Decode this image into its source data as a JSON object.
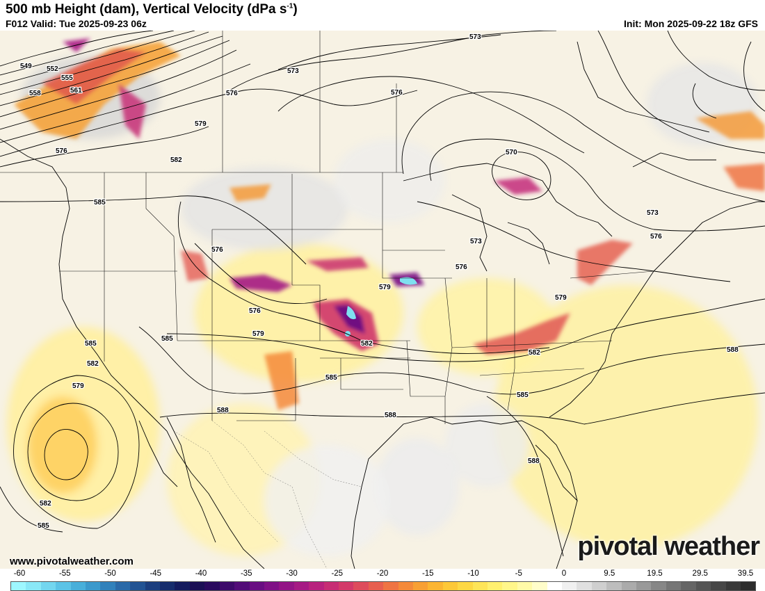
{
  "header": {
    "title_main": "500 mb Height (dam), Vertical Velocity (dPa s",
    "title_sup": "-1",
    "title_end": ")",
    "valid": "F012 Valid: Tue 2025-09-23 06z",
    "init": "Init: Mon 2025-09-22 18z GFS"
  },
  "branding": {
    "website": "www.pivotalweather.com",
    "logo": "pivotal weather"
  },
  "contour_labels": [
    {
      "text": "549",
      "id": "label-549"
    },
    {
      "text": "552",
      "id": "label-552"
    },
    {
      "text": "555",
      "id": "label-555"
    },
    {
      "text": "558",
      "id": "label-558"
    },
    {
      "text": "561",
      "id": "label-561"
    },
    {
      "text": "576",
      "id": "label-576-nw"
    },
    {
      "text": "576",
      "id": "label-576-bc"
    },
    {
      "text": "579",
      "id": "label-579-nw"
    },
    {
      "text": "582",
      "id": "label-582-nw"
    },
    {
      "text": "573",
      "id": "label-573-n1"
    },
    {
      "text": "573",
      "id": "label-573-n2"
    },
    {
      "text": "576",
      "id": "label-576-n"
    },
    {
      "text": "570",
      "id": "label-570"
    },
    {
      "text": "573",
      "id": "label-573-glakes"
    },
    {
      "text": "573",
      "id": "label-573-ne"
    },
    {
      "text": "576",
      "id": "label-576-ne"
    },
    {
      "text": "576",
      "id": "label-576-mw"
    },
    {
      "text": "579",
      "id": "label-579-ia"
    },
    {
      "text": "579",
      "id": "label-579-va"
    },
    {
      "text": "582",
      "id": "label-582-tn"
    },
    {
      "text": "588",
      "id": "label-588-atl"
    },
    {
      "text": "585",
      "id": "label-585-w"
    },
    {
      "text": "576",
      "id": "label-576-wy"
    },
    {
      "text": "576",
      "id": "label-576-co"
    },
    {
      "text": "579",
      "id": "label-579-co"
    },
    {
      "text": "582",
      "id": "label-582-ks"
    },
    {
      "text": "585",
      "id": "label-585-ok"
    },
    {
      "text": "585",
      "id": "label-585-ca"
    },
    {
      "text": "585",
      "id": "label-585-nv"
    },
    {
      "text": "582",
      "id": "label-582-pac"
    },
    {
      "text": "579",
      "id": "label-579-pac"
    },
    {
      "text": "582",
      "id": "label-582-pac2"
    },
    {
      "text": "585",
      "id": "label-585-pac2"
    },
    {
      "text": "588",
      "id": "label-588-az"
    },
    {
      "text": "588",
      "id": "label-588-tx"
    },
    {
      "text": "585",
      "id": "label-585-ga"
    },
    {
      "text": "588",
      "id": "label-588-fl"
    }
  ],
  "legend": {
    "ticks": [
      "-60",
      "-55",
      "-50",
      "-45",
      "-40",
      "-35",
      "-30",
      "-25",
      "-20",
      "-15",
      "-10",
      "-5",
      "0",
      "9.5",
      "19.5",
      "29.5",
      "39.5"
    ],
    "colors": [
      "#9ef7ff",
      "#8ae8f7",
      "#73d6ef",
      "#5cc3e6",
      "#48afda",
      "#3b99cc",
      "#3181bb",
      "#2a69a8",
      "#225393",
      "#1b3e7e",
      "#162c6c",
      "#141b5e",
      "#1b0f55",
      "#2a0a5e",
      "#3d0a6a",
      "#520c78",
      "#690e82",
      "#7f1186",
      "#931486",
      "#a61a84",
      "#b8227e",
      "#c72d74",
      "#d33a69",
      "#de4c5c",
      "#e75f4f",
      "#ef7443",
      "#f48a3a",
      "#f8a034",
      "#fbb532",
      "#fdc838",
      "#fed844",
      "#fee558",
      "#fff06f",
      "#fff68a",
      "#fffaa8",
      "#fffdca",
      "#ffffff",
      "#f0f0f0",
      "#e0e0e0",
      "#cfcfcf",
      "#bdbdbd",
      "#ababab",
      "#999999",
      "#878787",
      "#767676",
      "#656565",
      "#555555",
      "#464646",
      "#383838",
      "#2c2c2c"
    ]
  }
}
